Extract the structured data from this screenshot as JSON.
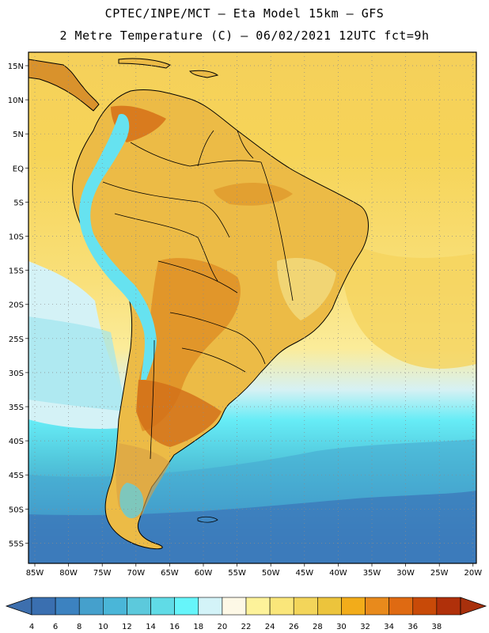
{
  "header": {
    "line1": "CPTEC/INPE/MCT —  Eta Model 15km — GFS",
    "line2": "2 Metre Temperature (C) — 06/02/2021 12UTC fct=9h"
  },
  "map": {
    "lat_ticks": [
      "15N",
      "10N",
      "5N",
      "EQ",
      "5S",
      "10S",
      "15S",
      "20S",
      "25S",
      "30S",
      "35S",
      "40S",
      "45S",
      "50S",
      "55S"
    ],
    "lon_ticks": [
      "85W",
      "80W",
      "75W",
      "70W",
      "65W",
      "60W",
      "55W",
      "50W",
      "45W",
      "40W",
      "35W",
      "30W",
      "25W",
      "20W"
    ]
  },
  "colorbar": {
    "labels": [
      "4",
      "6",
      "8",
      "10",
      "12",
      "14",
      "16",
      "18",
      "20",
      "22",
      "24",
      "26",
      "28",
      "30",
      "32",
      "34",
      "36",
      "38"
    ],
    "colors": [
      "#3a6fb0",
      "#3c82c0",
      "#45a0cc",
      "#4ab6d8",
      "#5cc9dc",
      "#60dbe6",
      "#66f5fa",
      "#d3f3f8",
      "#fdf8e6",
      "#fdf29a",
      "#fae67a",
      "#f3d55a",
      "#ecc43c",
      "#f2ac1a",
      "#e88a1c",
      "#df6a12",
      "#c84a08",
      "#b0300a"
    ]
  },
  "colors": {
    "ocean_warm": "#f6d258",
    "ocean_mid": "#f9e88a",
    "ocean_cool": "#62dcea",
    "ocean_cold": "#3c7bbb",
    "land": "#ecba46",
    "land_hot": "#d9781e",
    "andes": "#66e4f2"
  }
}
